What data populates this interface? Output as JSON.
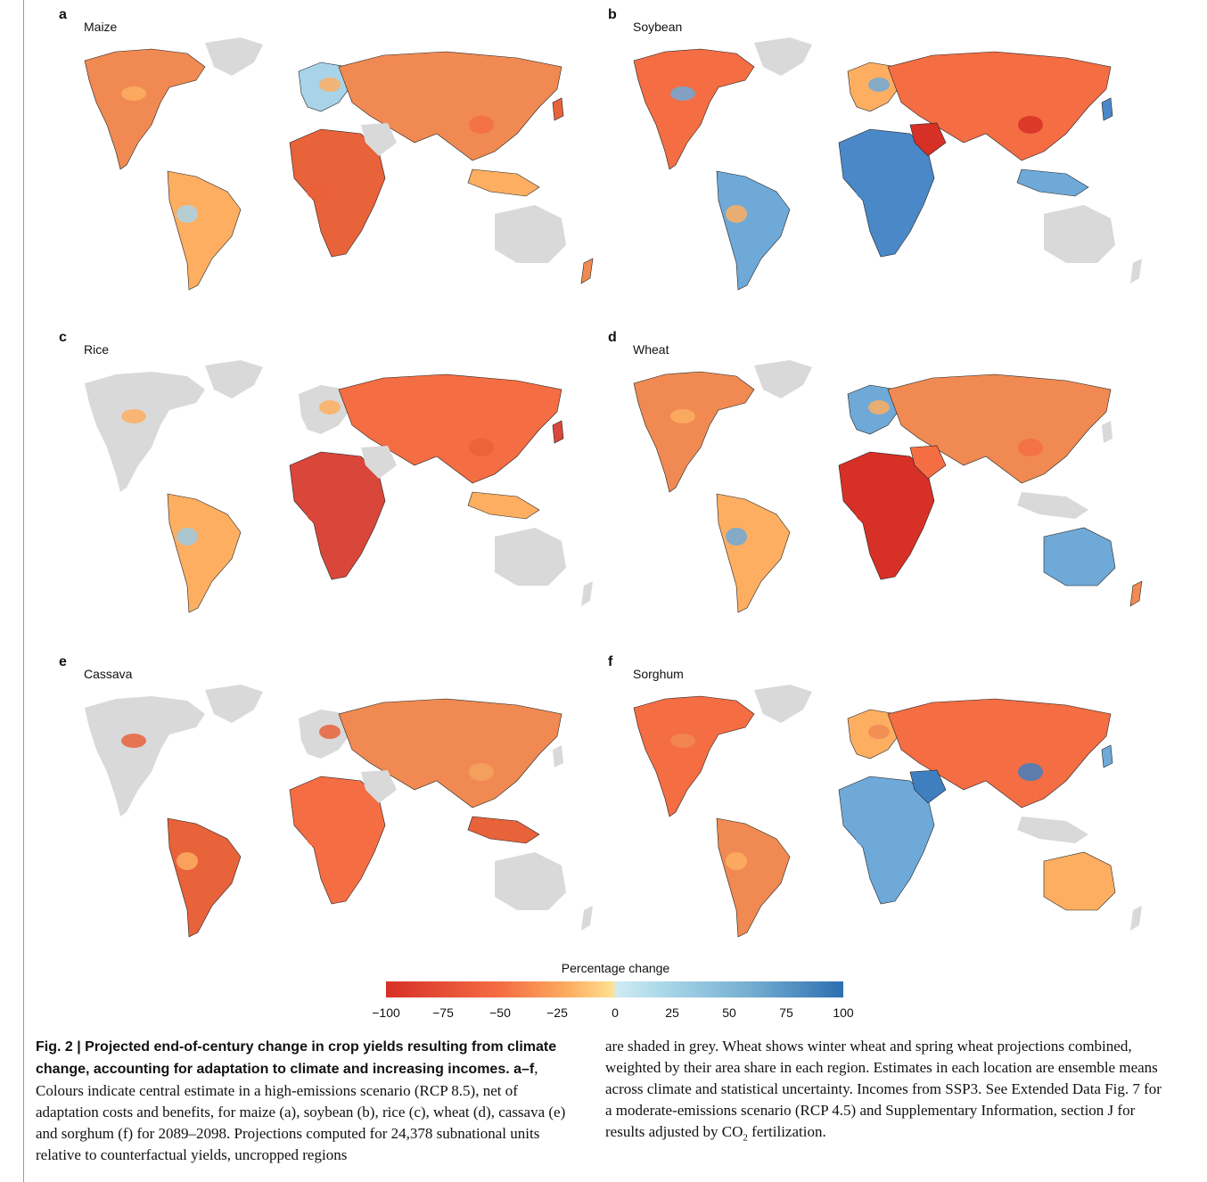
{
  "panels": [
    {
      "label": "a",
      "title": "Maize",
      "palette": [
        "#f08a52",
        "#f46d43",
        "#fdae61",
        "#a9d3e8",
        "#e8623a"
      ]
    },
    {
      "label": "b",
      "title": "Soybean",
      "palette": [
        "#f46d43",
        "#d73027",
        "#6ea9d8",
        "#fdae61",
        "#4a88c8"
      ]
    },
    {
      "label": "c",
      "title": "Rice",
      "palette": [
        "#f46d43",
        "#e8623a",
        "#fdae61",
        "#9ecae1",
        "#d9473a"
      ]
    },
    {
      "label": "d",
      "title": "Wheat",
      "palette": [
        "#f08a52",
        "#f46d43",
        "#fdae61",
        "#6ea9d8",
        "#d73027"
      ]
    },
    {
      "label": "e",
      "title": "Cassava",
      "palette": [
        "#f08a52",
        "#f6a25e",
        "#e8623a",
        "#fdae61",
        "#f46d43"
      ]
    },
    {
      "label": "f",
      "title": "Sorghum",
      "palette": [
        "#f46d43",
        "#3f7fc0",
        "#f08a52",
        "#fdae61",
        "#6ea9d8"
      ]
    }
  ],
  "legend": {
    "title": "Percentage change",
    "ticks": [
      "−100",
      "−75",
      "−50",
      "−25",
      "0",
      "25",
      "50",
      "75",
      "100"
    ]
  },
  "colors": {
    "land": "#d9d9d9",
    "border": "#222222"
  },
  "caption": {
    "fig_label": "Fig. 2 | ",
    "bold": "Projected end-of-century change in crop yields resulting from climate change, accounting for adaptation to climate and increasing incomes.",
    "left_lead": " a–f",
    "left_text": ", Colours indicate central estimate in a high-emissions scenario (RCP 8.5), net of adaptation costs and benefits, for maize (a), soybean (b), rice (c), wheat (d), cassava (e) and sorghum (f) for 2089–2098. Projections computed for 24,378 subnational units relative to counterfactual yields, uncropped regions",
    "right_text_1": "are shaded in grey. Wheat shows winter wheat and spring wheat projections combined, weighted by their area share in each region. Estimates in each location are ensemble means across climate and statistical uncertainty. Incomes from SSP3. See Extended Data Fig. 7 for a moderate-emissions scenario (RCP 4.5) and Supplementary Information, section J for results adjusted by CO",
    "co2_sub": "2",
    "right_text_2": " fertilization."
  }
}
